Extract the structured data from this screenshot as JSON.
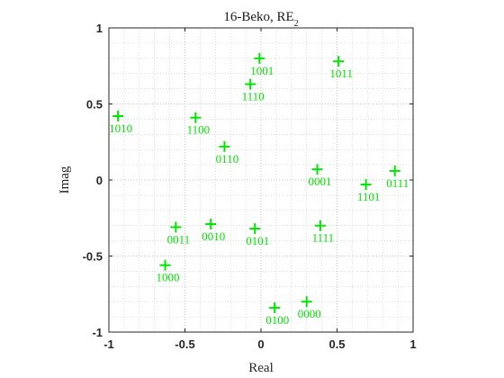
{
  "chart_data": {
    "type": "scatter",
    "title": "16-Beko, RE",
    "title_subscript": "2",
    "xlabel": "Real",
    "ylabel": "Imag",
    "xlim": [
      -1,
      1
    ],
    "ylim": [
      -1,
      1
    ],
    "xticks": [
      -1,
      -0.5,
      0,
      0.5,
      1
    ],
    "yticks": [
      -1,
      -0.5,
      0,
      0.5,
      1
    ],
    "xtick_labels": [
      "-1",
      "-0.5",
      "0",
      "0.5",
      "1"
    ],
    "ytick_labels": [
      "-1",
      "-0.5",
      "0",
      "0.5",
      "1"
    ],
    "grid": "dotted minor",
    "marker": "+",
    "color": "#00e600",
    "points": [
      {
        "label": "1001",
        "x": -0.01,
        "y": 0.8
      },
      {
        "label": "1011",
        "x": 0.51,
        "y": 0.78
      },
      {
        "label": "1110",
        "x": -0.07,
        "y": 0.63
      },
      {
        "label": "1010",
        "x": -0.94,
        "y": 0.42
      },
      {
        "label": "1100",
        "x": -0.43,
        "y": 0.41
      },
      {
        "label": "0110",
        "x": -0.24,
        "y": 0.22
      },
      {
        "label": "0111",
        "x": 0.88,
        "y": 0.06
      },
      {
        "label": "0001",
        "x": 0.37,
        "y": 0.07
      },
      {
        "label": "1101",
        "x": 0.69,
        "y": -0.03
      },
      {
        "label": "0010",
        "x": -0.33,
        "y": -0.29
      },
      {
        "label": "0011",
        "x": -0.56,
        "y": -0.31
      },
      {
        "label": "0101",
        "x": -0.04,
        "y": -0.32
      },
      {
        "label": "1111",
        "x": 0.39,
        "y": -0.3
      },
      {
        "label": "1000",
        "x": -0.63,
        "y": -0.56
      },
      {
        "label": "0000",
        "x": 0.3,
        "y": -0.8
      },
      {
        "label": "0100",
        "x": 0.09,
        "y": -0.84
      }
    ]
  }
}
